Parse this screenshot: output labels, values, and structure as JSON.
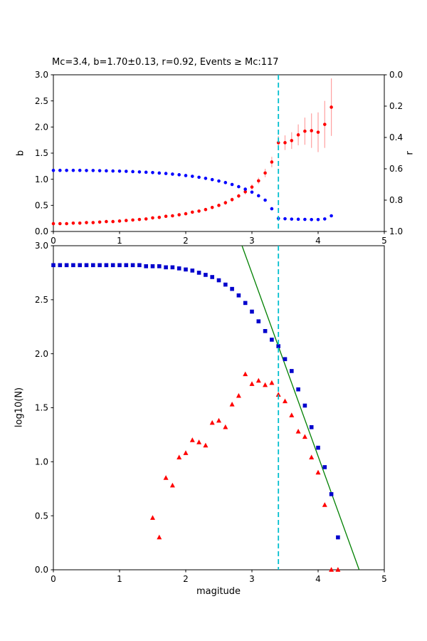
{
  "figure": {
    "background": "#ffffff"
  },
  "chart_data": [
    {
      "id": "b-r-vs-cutoff",
      "type": "scatter",
      "title": "Mc=3.4, b=1.70±0.13, r=0.92, Events ≥ Mc:117",
      "xlim": [
        0,
        5
      ],
      "xticks": {
        "values": [
          0,
          1,
          2,
          3,
          4,
          5
        ],
        "labels": [
          "0",
          "1",
          "2",
          "3",
          "4",
          "5"
        ]
      },
      "left_axis": {
        "label": "b",
        "lim": [
          0,
          3
        ],
        "ticks": {
          "values": [
            0,
            0.5,
            1,
            1.5,
            2,
            2.5,
            3
          ],
          "labels": [
            "0.0",
            "0.5",
            "1.0",
            "1.5",
            "2.0",
            "2.5",
            "3.0"
          ]
        }
      },
      "right_axis": {
        "label": "r",
        "lim": [
          1,
          0
        ],
        "ticks": {
          "values": [
            0,
            0.2,
            0.4,
            0.6,
            0.8,
            1
          ],
          "labels": [
            "0.0",
            "0.2",
            "0.4",
            "0.6",
            "0.8",
            "1.0"
          ]
        }
      },
      "vline": {
        "x": 3.4,
        "color": "#00bfcf",
        "dash": "7,4"
      },
      "series": [
        {
          "name": "b-value",
          "axis": "left",
          "marker": "circle",
          "color": "#ff0000",
          "errcolor": "#ffa0a0",
          "x": [
            0.0,
            0.1,
            0.2,
            0.3,
            0.4,
            0.5,
            0.6,
            0.7,
            0.8,
            0.9,
            1.0,
            1.1,
            1.2,
            1.3,
            1.4,
            1.5,
            1.6,
            1.7,
            1.8,
            1.9,
            2.0,
            2.1,
            2.2,
            2.3,
            2.4,
            2.5,
            2.6,
            2.7,
            2.8,
            2.9,
            3.0,
            3.1,
            3.2,
            3.3,
            3.4,
            3.5,
            3.6,
            3.7,
            3.8,
            3.9,
            4.0,
            4.1,
            4.2
          ],
          "y": [
            0.15,
            0.15,
            0.15,
            0.16,
            0.16,
            0.17,
            0.17,
            0.18,
            0.19,
            0.19,
            0.2,
            0.21,
            0.22,
            0.23,
            0.24,
            0.26,
            0.27,
            0.29,
            0.3,
            0.32,
            0.34,
            0.37,
            0.39,
            0.42,
            0.46,
            0.5,
            0.55,
            0.61,
            0.68,
            0.76,
            0.85,
            0.97,
            1.12,
            1.33,
            1.7,
            1.7,
            1.74,
            1.85,
            1.92,
            1.93,
            1.9,
            2.05,
            2.38
          ],
          "yerr": [
            0.01,
            0.01,
            0.01,
            0.01,
            0.01,
            0.01,
            0.01,
            0.01,
            0.01,
            0.01,
            0.02,
            0.02,
            0.02,
            0.02,
            0.02,
            0.02,
            0.02,
            0.02,
            0.02,
            0.02,
            0.03,
            0.03,
            0.03,
            0.03,
            0.03,
            0.03,
            0.04,
            0.04,
            0.04,
            0.05,
            0.05,
            0.06,
            0.08,
            0.1,
            0.13,
            0.14,
            0.16,
            0.2,
            0.26,
            0.33,
            0.38,
            0.45,
            0.55
          ]
        },
        {
          "name": "goodness-of-fit-r",
          "axis": "right",
          "marker": "circle",
          "color": "#0000ff",
          "x": [
            0.0,
            0.1,
            0.2,
            0.3,
            0.4,
            0.5,
            0.6,
            0.7,
            0.8,
            0.9,
            1.0,
            1.1,
            1.2,
            1.3,
            1.4,
            1.5,
            1.6,
            1.7,
            1.8,
            1.9,
            2.0,
            2.1,
            2.2,
            2.3,
            2.4,
            2.5,
            2.6,
            2.7,
            2.8,
            2.9,
            3.0,
            3.1,
            3.2,
            3.3,
            3.4,
            3.5,
            3.6,
            3.7,
            3.8,
            3.9,
            4.0,
            4.1,
            4.2
          ],
          "y": [
            0.61,
            0.61,
            0.61,
            0.61,
            0.61,
            0.611,
            0.611,
            0.612,
            0.613,
            0.614,
            0.615,
            0.616,
            0.618,
            0.62,
            0.622,
            0.624,
            0.627,
            0.63,
            0.634,
            0.638,
            0.643,
            0.648,
            0.654,
            0.661,
            0.669,
            0.678,
            0.688,
            0.7,
            0.714,
            0.73,
            0.749,
            0.772,
            0.8,
            0.855,
            0.917,
            0.919,
            0.921,
            0.922,
            0.923,
            0.924,
            0.924,
            0.92,
            0.9
          ]
        }
      ]
    },
    {
      "id": "frequency-magnitude",
      "type": "scatter",
      "xlabel": "magitude",
      "ylabel": "log10(N)",
      "xlim": [
        0,
        5
      ],
      "ylim": [
        0,
        3
      ],
      "xticks": {
        "values": [
          0,
          1,
          2,
          3,
          4,
          5
        ],
        "labels": [
          "0",
          "1",
          "2",
          "3",
          "4",
          "5"
        ]
      },
      "yticks": {
        "values": [
          0,
          0.5,
          1,
          1.5,
          2,
          2.5,
          3
        ],
        "labels": [
          "0.0",
          "0.5",
          "1.0",
          "1.5",
          "2.0",
          "2.5",
          "3.0"
        ]
      },
      "vline": {
        "x": 3.4,
        "color": "#00bfcf",
        "dash": "7,4"
      },
      "series": [
        {
          "name": "gr-fit-line",
          "marker": "line",
          "color": "#008000",
          "x": [
            2.85,
            4.62
          ],
          "y": [
            3.0,
            0.0
          ]
        },
        {
          "name": "cumulative-count",
          "marker": "square",
          "color": "#0000cd",
          "x": [
            0.0,
            0.1,
            0.2,
            0.3,
            0.4,
            0.5,
            0.6,
            0.7,
            0.8,
            0.9,
            1.0,
            1.1,
            1.2,
            1.3,
            1.4,
            1.5,
            1.6,
            1.7,
            1.8,
            1.9,
            2.0,
            2.1,
            2.2,
            2.3,
            2.4,
            2.5,
            2.6,
            2.7,
            2.8,
            2.9,
            3.0,
            3.1,
            3.2,
            3.3,
            3.4,
            3.5,
            3.6,
            3.7,
            3.8,
            3.9,
            4.0,
            4.1,
            4.2,
            4.3
          ],
          "y": [
            2.82,
            2.82,
            2.82,
            2.82,
            2.82,
            2.82,
            2.82,
            2.82,
            2.82,
            2.82,
            2.82,
            2.82,
            2.82,
            2.82,
            2.81,
            2.81,
            2.81,
            2.8,
            2.8,
            2.79,
            2.78,
            2.77,
            2.75,
            2.73,
            2.71,
            2.68,
            2.64,
            2.6,
            2.54,
            2.47,
            2.39,
            2.3,
            2.21,
            2.13,
            2.07,
            1.95,
            1.84,
            1.67,
            1.52,
            1.32,
            1.13,
            0.95,
            0.7,
            0.3
          ]
        },
        {
          "name": "incremental-count",
          "marker": "triangle",
          "color": "#ff0000",
          "x": [
            1.5,
            1.6,
            1.7,
            1.8,
            1.9,
            2.0,
            2.1,
            2.2,
            2.3,
            2.4,
            2.5,
            2.6,
            2.7,
            2.8,
            2.9,
            3.0,
            3.1,
            3.2,
            3.3,
            3.4,
            3.5,
            3.6,
            3.7,
            3.8,
            3.9,
            4.0,
            4.1,
            4.2,
            4.3
          ],
          "y": [
            0.48,
            0.3,
            0.85,
            0.78,
            1.04,
            1.08,
            1.2,
            1.18,
            1.15,
            1.36,
            1.38,
            1.32,
            1.53,
            1.61,
            1.81,
            1.72,
            1.75,
            1.71,
            1.73,
            1.62,
            1.56,
            1.43,
            1.28,
            1.23,
            1.04,
            0.9,
            0.6,
            0.0,
            0.0
          ]
        }
      ]
    }
  ]
}
